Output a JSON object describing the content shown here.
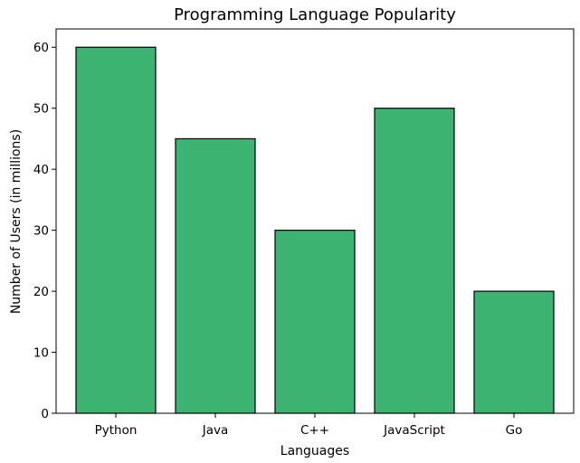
{
  "chart_data": {
    "type": "bar",
    "title": "Programming Language Popularity",
    "xlabel": "Languages",
    "ylabel": "Number of Users (in millions)",
    "categories": [
      "Python",
      "Java",
      "C++",
      "JavaScript",
      "Go"
    ],
    "values": [
      60,
      45,
      30,
      50,
      20
    ],
    "ylim": [
      0,
      63
    ],
    "yticks": [
      0,
      10,
      20,
      30,
      40,
      50,
      60
    ],
    "bar_color": "#3cb371",
    "edge_color": "#000000",
    "grid": false,
    "legend": "none"
  }
}
